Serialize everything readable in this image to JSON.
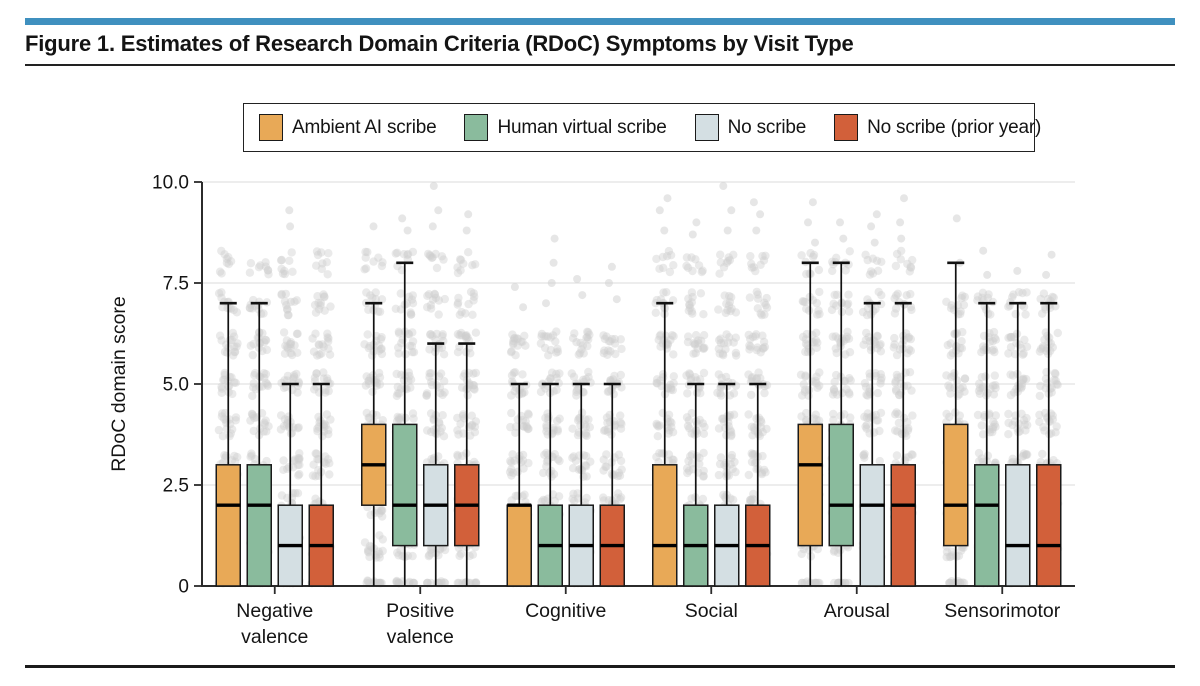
{
  "figure": {
    "title": "Figure 1. Estimates of Research Domain Criteria (RDoC) Symptoms by Visit Type",
    "accent_bar_color": "#3F90BF"
  },
  "legend": {
    "position": "top",
    "items": [
      {
        "label": "Ambient AI scribe",
        "color": "#E8A957"
      },
      {
        "label": "Human virtual scribe",
        "color": "#8ABB9D"
      },
      {
        "label": "No scribe",
        "color": "#D4DFE3"
      },
      {
        "label": "No scribe (prior year)",
        "color": "#D2603A"
      }
    ]
  },
  "chart_data": {
    "type": "boxplot",
    "title": "",
    "xlabel": "",
    "ylabel": "RDoC domain score",
    "ylim": [
      0,
      10
    ],
    "ytick_values": [
      0,
      2.5,
      5,
      7.5,
      10
    ],
    "ytick_labels": [
      "0",
      "2.5",
      "5.0",
      "7.5",
      "10.0"
    ],
    "grid": true,
    "categories": [
      "Negative valence",
      "Positive valence",
      "Cognitive",
      "Social",
      "Arousal",
      "Sensorimotor"
    ],
    "category_label_lines": [
      [
        "Negative",
        "valence"
      ],
      [
        "Positive",
        "valence"
      ],
      [
        "Cognitive"
      ],
      [
        "Social"
      ],
      [
        "Arousal"
      ],
      [
        "Sensorimotor"
      ]
    ],
    "series": [
      {
        "name": "Ambient AI scribe",
        "color": "#E8A957",
        "boxes": [
          {
            "min": 0,
            "q1": 0,
            "median": 2,
            "q3": 3,
            "max": 7
          },
          {
            "min": 0,
            "q1": 2,
            "median": 3,
            "q3": 4,
            "max": 7
          },
          {
            "min": 0,
            "q1": 0,
            "median": 2,
            "q3": 2,
            "max": 5
          },
          {
            "min": 0,
            "q1": 0,
            "median": 1,
            "q3": 3,
            "max": 7
          },
          {
            "min": 0,
            "q1": 1,
            "median": 3,
            "q3": 4,
            "max": 8
          },
          {
            "min": 0,
            "q1": 1,
            "median": 2,
            "q3": 4,
            "max": 8
          }
        ]
      },
      {
        "name": "Human virtual scribe",
        "color": "#8ABB9D",
        "boxes": [
          {
            "min": 0,
            "q1": 0,
            "median": 2,
            "q3": 3,
            "max": 7
          },
          {
            "min": 0,
            "q1": 1,
            "median": 2,
            "q3": 4,
            "max": 8
          },
          {
            "min": 0,
            "q1": 0,
            "median": 1,
            "q3": 2,
            "max": 5
          },
          {
            "min": 0,
            "q1": 0,
            "median": 1,
            "q3": 2,
            "max": 5
          },
          {
            "min": 0,
            "q1": 1,
            "median": 2,
            "q3": 4,
            "max": 8
          },
          {
            "min": 0,
            "q1": 0,
            "median": 2,
            "q3": 3,
            "max": 7
          }
        ]
      },
      {
        "name": "No scribe",
        "color": "#D4DFE3",
        "boxes": [
          {
            "min": 0,
            "q1": 0,
            "median": 1,
            "q3": 2,
            "max": 5
          },
          {
            "min": 0,
            "q1": 1,
            "median": 2,
            "q3": 3,
            "max": 6
          },
          {
            "min": 0,
            "q1": 0,
            "median": 1,
            "q3": 2,
            "max": 5
          },
          {
            "min": 0,
            "q1": 0,
            "median": 1,
            "q3": 2,
            "max": 5
          },
          {
            "min": 0,
            "q1": 0,
            "median": 2,
            "q3": 3,
            "max": 7
          },
          {
            "min": 0,
            "q1": 0,
            "median": 1,
            "q3": 3,
            "max": 7
          }
        ]
      },
      {
        "name": "No scribe (prior year)",
        "color": "#D2603A",
        "boxes": [
          {
            "min": 0,
            "q1": 0,
            "median": 1,
            "q3": 2,
            "max": 5
          },
          {
            "min": 0,
            "q1": 1,
            "median": 2,
            "q3": 3,
            "max": 6
          },
          {
            "min": 0,
            "q1": 0,
            "median": 1,
            "q3": 2,
            "max": 5
          },
          {
            "min": 0,
            "q1": 0,
            "median": 1,
            "q3": 2,
            "max": 5
          },
          {
            "min": 0,
            "q1": 0,
            "median": 2,
            "q3": 3,
            "max": 7
          },
          {
            "min": 0,
            "q1": 0,
            "median": 1,
            "q3": 3,
            "max": 7
          }
        ]
      }
    ],
    "scatter_overlay": {
      "description": "jittered gray dots of individual raw domain scores behind each box, clustered at integer score values",
      "dot_color": "#CDCDCD",
      "dot_opacity": 0.42,
      "dense_top_score": [
        [
          8,
          8,
          8,
          8
        ],
        [
          8,
          8,
          8,
          8
        ],
        [
          6,
          6,
          6,
          6
        ],
        [
          8,
          8,
          8,
          8
        ],
        [
          8,
          8,
          8,
          8
        ],
        [
          7,
          7,
          7,
          7
        ]
      ],
      "outlier_scores": [
        [
          [],
          [],
          [
            8.9,
            9.3
          ],
          []
        ],
        [
          [
            8.9
          ],
          [
            8.8,
            9.1
          ],
          [
            8.9,
            9.3,
            9.9
          ],
          [
            8.8,
            9.2
          ]
        ],
        [
          [
            6.9,
            7.4
          ],
          [
            7.0,
            7.5,
            8.0,
            8.6
          ],
          [
            7.2,
            7.6
          ],
          [
            7.1,
            7.5,
            7.9
          ]
        ],
        [
          [
            8.8,
            9.3,
            9.6
          ],
          [
            8.7,
            9.0
          ],
          [
            8.8,
            9.3,
            9.9
          ],
          [
            8.8,
            9.2,
            9.5
          ]
        ],
        [
          [
            8.5,
            9.0,
            9.5
          ],
          [
            8.6,
            9.0
          ],
          [
            8.5,
            8.9,
            9.2
          ],
          [
            8.6,
            9.0,
            9.6
          ]
        ],
        [
          [
            8.0,
            9.1
          ],
          [
            7.7,
            8.3
          ],
          [
            7.8
          ],
          [
            7.7,
            8.2
          ]
        ]
      ]
    },
    "colors": {
      "grid_line": "#E2E2E2",
      "axis_line": "#2B2B2B",
      "box_border": "#1A1A1A",
      "median_line": "#000000"
    }
  }
}
